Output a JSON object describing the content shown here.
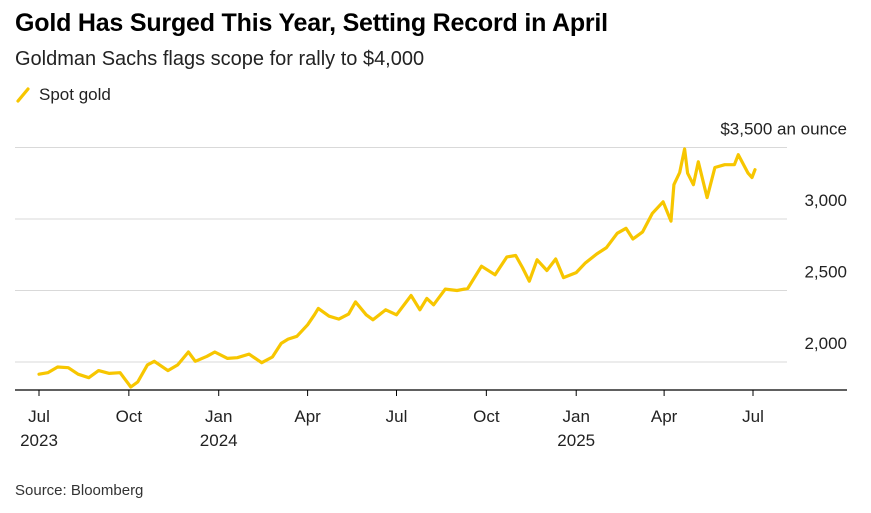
{
  "title": "Gold Has Surged This Year, Setting Record in April",
  "subtitle": "Goldman Sachs flags scope for rally to $4,000",
  "legend": {
    "label": "Spot gold"
  },
  "source": "Source: Bloomberg",
  "colors": {
    "series": "#f7c600",
    "grid": "#d9d9d9",
    "axis": "#000000"
  },
  "chart_data": {
    "type": "line",
    "title": "Gold Has Surged This Year, Setting Record in April",
    "subtitle": "Goldman Sachs flags scope for rally to $4,000",
    "xlabel": "",
    "ylabel": "",
    "ylim": [
      1750,
      3500
    ],
    "y_ticks": [
      {
        "value": 3500,
        "label": "$3,500 an ounce"
      },
      {
        "value": 3000,
        "label": "3,000"
      },
      {
        "value": 2500,
        "label": "2,500"
      },
      {
        "value": 2000,
        "label": "2,000"
      }
    ],
    "x_ticks": [
      {
        "date": "2023-07-01",
        "label": "Jul",
        "year": "2023"
      },
      {
        "date": "2023-10-01",
        "label": "Oct",
        "year": ""
      },
      {
        "date": "2024-01-01",
        "label": "Jan",
        "year": "2024"
      },
      {
        "date": "2024-04-01",
        "label": "Apr",
        "year": ""
      },
      {
        "date": "2024-07-01",
        "label": "Jul",
        "year": ""
      },
      {
        "date": "2024-10-01",
        "label": "Oct",
        "year": ""
      },
      {
        "date": "2025-01-01",
        "label": "Jan",
        "year": "2025"
      },
      {
        "date": "2025-04-01",
        "label": "Apr",
        "year": ""
      },
      {
        "date": "2025-07-01",
        "label": "Jul",
        "year": ""
      }
    ],
    "grid": true,
    "legend_position": "top-left",
    "series": [
      {
        "name": "Spot gold",
        "points": [
          [
            "2023-07-01",
            1915
          ],
          [
            "2023-07-10",
            1925
          ],
          [
            "2023-07-20",
            1965
          ],
          [
            "2023-07-31",
            1960
          ],
          [
            "2023-08-10",
            1915
          ],
          [
            "2023-08-21",
            1890
          ],
          [
            "2023-08-31",
            1940
          ],
          [
            "2023-09-11",
            1920
          ],
          [
            "2023-09-22",
            1925
          ],
          [
            "2023-10-03",
            1825
          ],
          [
            "2023-10-10",
            1860
          ],
          [
            "2023-10-20",
            1980
          ],
          [
            "2023-10-27",
            2005
          ],
          [
            "2023-11-10",
            1940
          ],
          [
            "2023-11-20",
            1980
          ],
          [
            "2023-12-01",
            2070
          ],
          [
            "2023-12-08",
            2005
          ],
          [
            "2023-12-20",
            2040
          ],
          [
            "2023-12-28",
            2070
          ],
          [
            "2024-01-10",
            2025
          ],
          [
            "2024-01-20",
            2030
          ],
          [
            "2024-02-01",
            2055
          ],
          [
            "2024-02-14",
            1995
          ],
          [
            "2024-02-25",
            2035
          ],
          [
            "2024-03-05",
            2130
          ],
          [
            "2024-03-12",
            2160
          ],
          [
            "2024-03-21",
            2180
          ],
          [
            "2024-04-01",
            2260
          ],
          [
            "2024-04-08",
            2330
          ],
          [
            "2024-04-12",
            2375
          ],
          [
            "2024-04-23",
            2320
          ],
          [
            "2024-05-03",
            2300
          ],
          [
            "2024-05-13",
            2335
          ],
          [
            "2024-05-20",
            2420
          ],
          [
            "2024-05-31",
            2330
          ],
          [
            "2024-06-07",
            2295
          ],
          [
            "2024-06-20",
            2365
          ],
          [
            "2024-07-01",
            2330
          ],
          [
            "2024-07-16",
            2465
          ],
          [
            "2024-07-25",
            2365
          ],
          [
            "2024-08-01",
            2445
          ],
          [
            "2024-08-08",
            2400
          ],
          [
            "2024-08-20",
            2510
          ],
          [
            "2024-09-01",
            2500
          ],
          [
            "2024-09-12",
            2515
          ],
          [
            "2024-09-26",
            2670
          ],
          [
            "2024-10-10",
            2610
          ],
          [
            "2024-10-22",
            2735
          ],
          [
            "2024-10-31",
            2745
          ],
          [
            "2024-11-07",
            2660
          ],
          [
            "2024-11-14",
            2565
          ],
          [
            "2024-11-22",
            2715
          ],
          [
            "2024-12-02",
            2640
          ],
          [
            "2024-12-11",
            2720
          ],
          [
            "2024-12-19",
            2590
          ],
          [
            "2025-01-01",
            2625
          ],
          [
            "2025-01-10",
            2690
          ],
          [
            "2025-01-22",
            2755
          ],
          [
            "2025-02-01",
            2800
          ],
          [
            "2025-02-12",
            2900
          ],
          [
            "2025-02-21",
            2935
          ],
          [
            "2025-02-28",
            2860
          ],
          [
            "2025-03-10",
            2910
          ],
          [
            "2025-03-20",
            3040
          ],
          [
            "2025-03-31",
            3120
          ],
          [
            "2025-04-08",
            2985
          ],
          [
            "2025-04-11",
            3240
          ],
          [
            "2025-04-17",
            3325
          ],
          [
            "2025-04-22",
            3490
          ],
          [
            "2025-04-25",
            3320
          ],
          [
            "2025-05-01",
            3240
          ],
          [
            "2025-05-06",
            3400
          ],
          [
            "2025-05-15",
            3150
          ],
          [
            "2025-05-23",
            3360
          ],
          [
            "2025-06-02",
            3380
          ],
          [
            "2025-06-12",
            3380
          ],
          [
            "2025-06-16",
            3450
          ],
          [
            "2025-06-26",
            3320
          ],
          [
            "2025-06-30",
            3290
          ],
          [
            "2025-07-03",
            3345
          ]
        ]
      }
    ]
  }
}
